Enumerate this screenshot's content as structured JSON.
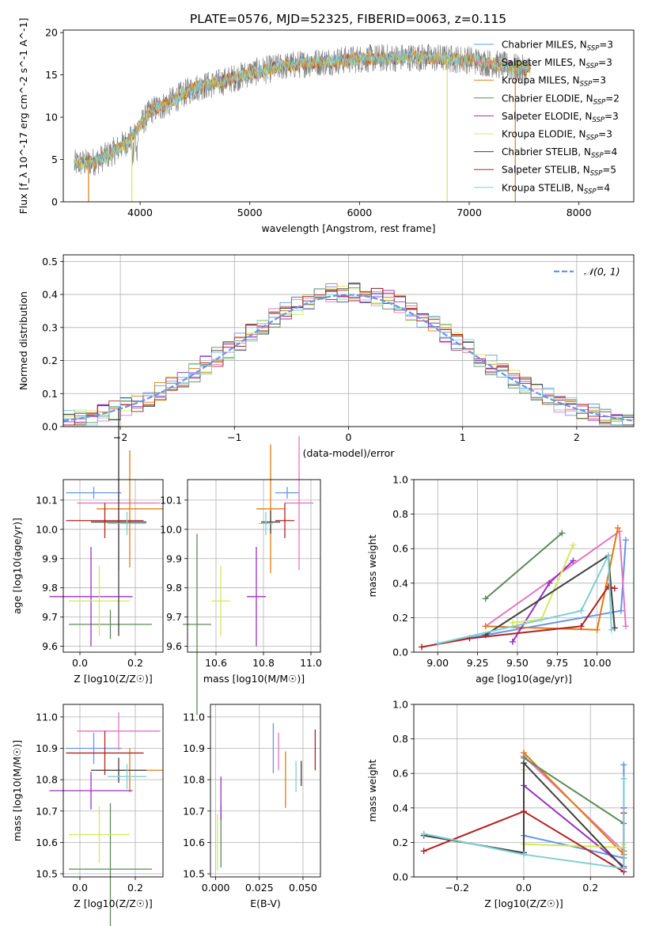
{
  "figure": {
    "suptitle": "PLATE=0576, MJD=52325, FIBERID=0063, z=0.115"
  },
  "colors": {
    "Chabrier MILES": "#6495ed",
    "Salpeter MILES": "#e377c2",
    "Kroupa MILES": "#e07b10",
    "Chabrier ELODIE": "#5b8a5b",
    "Salpeter ELODIE": "#9b30c0",
    "Kroupa ELODIE": "#d4e85a",
    "Chabrier STELIB": "#404040",
    "Salpeter STELIB": "#b22222",
    "Kroupa STELIB": "#7fcfd4",
    "gaussian": "#6495ed"
  },
  "chart_data": [
    {
      "id": "spectrum",
      "type": "line",
      "xlabel": "wavelength [Angstrom, rest frame]",
      "ylabel": "Flux [f_λ 10^-17 erg cm^-2 s^-1 A^-1]",
      "xlim": [
        3300,
        8500
      ],
      "ylim": [
        0,
        20.3
      ],
      "xticks": [
        4000,
        5000,
        6000,
        7000,
        8000
      ],
      "yticks": [
        0,
        5,
        10,
        15,
        20
      ],
      "legend": "upper-right",
      "continuum": {
        "x": [
          3400,
          3500,
          3600,
          3700,
          3800,
          3900,
          4000,
          4100,
          4200,
          4300,
          4400,
          4500,
          4700,
          5000,
          5300,
          5600,
          6000,
          6500,
          7000,
          7500
        ],
        "y": [
          4.5,
          4.6,
          4.8,
          5.5,
          6.3,
          7.3,
          9.0,
          10.8,
          11.3,
          12.0,
          12.8,
          13.5,
          14.0,
          15.2,
          16.0,
          16.5,
          16.9,
          17.1,
          16.8,
          15.7
        ]
      },
      "series": [
        {
          "name": "Chabrier MILES",
          "nssp": "3"
        },
        {
          "name": "Salpeter MILES",
          "nssp": "3"
        },
        {
          "name": "Kroupa MILES",
          "nssp": "3"
        },
        {
          "name": "Chabrier ELODIE",
          "nssp": "2"
        },
        {
          "name": "Salpeter ELODIE",
          "nssp": "3"
        },
        {
          "name": "Kroupa ELODIE",
          "nssp": "3"
        },
        {
          "name": "Chabrier STELIB",
          "nssp": "4"
        },
        {
          "name": "Salpeter STELIB",
          "nssp": "5"
        },
        {
          "name": "Kroupa STELIB",
          "nssp": "4"
        }
      ],
      "drops": [
        {
          "x": 3530,
          "y": 0,
          "series": "Kroupa MILES"
        },
        {
          "x": 3925,
          "y": 0,
          "series": "Kroupa ELODIE"
        },
        {
          "x": 6800,
          "y": 0,
          "series": "Kroupa ELODIE"
        },
        {
          "x": 7420,
          "y": 0,
          "series": "Kroupa MILES"
        }
      ]
    },
    {
      "id": "histogram",
      "type": "line",
      "xlabel": "(data-model)/error",
      "ylabel": "Normed distribution",
      "xlim": [
        -2.5,
        2.5
      ],
      "ylim": [
        0,
        0.52
      ],
      "xticks": [
        -2,
        -1,
        0,
        1,
        2
      ],
      "yticks": [
        0.0,
        0.1,
        0.2,
        0.3,
        0.4,
        0.5
      ],
      "legend": "upper-right",
      "gaussian_label": "𝒩(0, 1)",
      "bin_width": 0.1
    },
    {
      "id": "age_vs_Z",
      "type": "scatter",
      "xlabel": "Z [log10(Z/Z☉)]",
      "ylabel": "age  [log10(age/yr)]",
      "xlim": [
        -0.06,
        0.3
      ],
      "ylim": [
        9.58,
        10.17
      ],
      "xticks": [
        0.0,
        0.2
      ],
      "yticks": [
        9.6,
        9.7,
        9.8,
        9.9,
        10.0,
        10.1
      ],
      "points": [
        {
          "series": "Chabrier MILES",
          "x": 0.05,
          "y": 10.125,
          "xerr": 0.1,
          "yerr": 0.02
        },
        {
          "series": "Salpeter MILES",
          "x": 0.14,
          "y": 10.09,
          "xerr": 0.15,
          "yerr": 0.23
        },
        {
          "series": "Kroupa MILES",
          "x": 0.18,
          "y": 10.07,
          "xerr": 0.12,
          "yerr": 0.2
        },
        {
          "series": "Chabrier ELODIE",
          "x": 0.11,
          "y": 9.675,
          "xerr": 0.15,
          "yerr": 0.05
        },
        {
          "series": "Salpeter ELODIE",
          "x": 0.04,
          "y": 9.77,
          "xerr": 0.15,
          "yerr": 0.17
        },
        {
          "series": "Kroupa ELODIE",
          "x": 0.07,
          "y": 9.755,
          "xerr": 0.11,
          "yerr": 0.12
        },
        {
          "series": "Chabrier STELIB",
          "x": 0.14,
          "y": 10.025,
          "xerr": 0.1,
          "yerr": 0.39
        },
        {
          "series": "Salpeter STELIB",
          "x": 0.09,
          "y": 10.03,
          "xerr": 0.14,
          "yerr": 0.06
        },
        {
          "series": "Kroupa STELIB",
          "x": 0.17,
          "y": 10.02,
          "xerr": 0.07,
          "yerr": 0.04
        }
      ]
    },
    {
      "id": "age_vs_mass",
      "type": "scatter",
      "xlabel": "mass [log10(M/M☉)]",
      "ylabel": "",
      "xlim": [
        10.48,
        11.04
      ],
      "ylim": [
        9.58,
        10.17
      ],
      "xticks": [
        10.6,
        10.8,
        11.0
      ],
      "yticks": [
        9.6,
        9.7,
        9.8,
        9.9,
        10.0,
        10.1
      ],
      "points": [
        {
          "series": "Chabrier MILES",
          "x": 10.9,
          "y": 10.125,
          "xerr": 0.05,
          "yerr": 0.02
        },
        {
          "series": "Salpeter MILES",
          "x": 10.95,
          "y": 10.09,
          "xerr": 0.06,
          "yerr": 0.23
        },
        {
          "series": "Kroupa MILES",
          "x": 10.83,
          "y": 10.07,
          "xerr": 0.06,
          "yerr": 0.22
        },
        {
          "series": "Chabrier ELODIE",
          "x": 10.52,
          "y": 9.675,
          "xerr": 0.06,
          "yerr": 0.31
        },
        {
          "series": "Salpeter ELODIE",
          "x": 10.77,
          "y": 9.77,
          "xerr": 0.04,
          "yerr": 0.17
        },
        {
          "series": "Kroupa ELODIE",
          "x": 10.62,
          "y": 9.755,
          "xerr": 0.04,
          "yerr": 0.12
        },
        {
          "series": "Chabrier STELIB",
          "x": 10.83,
          "y": 10.025,
          "xerr": 0.04,
          "yerr": 0.04
        },
        {
          "series": "Salpeter STELIB",
          "x": 10.89,
          "y": 10.03,
          "xerr": 0.04,
          "yerr": 0.06
        },
        {
          "series": "Kroupa STELIB",
          "x": 10.81,
          "y": 10.02,
          "xerr": 0.03,
          "yerr": 0.04
        }
      ]
    },
    {
      "id": "weight_vs_age",
      "type": "line",
      "xlabel": "age  [log10(age/yr)]",
      "ylabel": "mass weight",
      "xlim": [
        8.85,
        10.23
      ],
      "ylim": [
        0,
        1.0
      ],
      "xticks": [
        9.0,
        9.25,
        9.5,
        9.75,
        10.0
      ],
      "yticks": [
        0.0,
        0.2,
        0.4,
        0.6,
        0.8,
        1.0
      ],
      "series": [
        {
          "name": "Chabrier MILES",
          "x": [
            9.0,
            10.15,
            10.18
          ],
          "y": [
            0.05,
            0.24,
            0.65
          ]
        },
        {
          "name": "Salpeter MILES",
          "x": [
            9.3,
            10.14,
            10.18
          ],
          "y": [
            0.15,
            0.7,
            0.15
          ]
        },
        {
          "name": "Kroupa MILES",
          "x": [
            9.3,
            10.0,
            10.13
          ],
          "y": [
            0.15,
            0.13,
            0.72
          ]
        },
        {
          "name": "Chabrier ELODIE",
          "x": [
            9.3,
            9.78
          ],
          "y": [
            0.31,
            0.69
          ]
        },
        {
          "name": "Salpeter ELODIE",
          "x": [
            9.47,
            9.7,
            9.85
          ],
          "y": [
            0.06,
            0.4,
            0.53
          ]
        },
        {
          "name": "Kroupa ELODIE",
          "x": [
            9.47,
            9.65,
            9.85
          ],
          "y": [
            0.17,
            0.19,
            0.62
          ]
        },
        {
          "name": "Chabrier STELIB",
          "x": [
            9.3,
            10.07,
            10.11
          ],
          "y": [
            0.1,
            0.56,
            0.14
          ]
        },
        {
          "name": "Salpeter STELIB",
          "x": [
            8.9,
            9.2,
            9.9,
            10.07,
            10.11
          ],
          "y": [
            0.03,
            0.08,
            0.15,
            0.38,
            0.37
          ]
        },
        {
          "name": "Kroupa STELIB",
          "x": [
            9.0,
            9.9,
            10.07,
            10.09
          ],
          "y": [
            0.05,
            0.24,
            0.56,
            0.13
          ]
        }
      ]
    },
    {
      "id": "mass_vs_Z",
      "type": "scatter",
      "xlabel": "Z [log10(Z/Z☉)]",
      "ylabel": "mass [log10(M/M☉)]",
      "xlim": [
        -0.06,
        0.3
      ],
      "ylim": [
        10.49,
        11.04
      ],
      "xticks": [
        0.0,
        0.2
      ],
      "yticks": [
        10.5,
        10.6,
        10.7,
        10.8,
        10.9,
        11.0
      ],
      "points": [
        {
          "series": "Chabrier MILES",
          "x": 0.05,
          "y": 10.9,
          "xerr": 0.1,
          "yerr": 0.05
        },
        {
          "series": "Salpeter MILES",
          "x": 0.14,
          "y": 10.955,
          "xerr": 0.15,
          "yerr": 0.06
        },
        {
          "series": "Kroupa MILES",
          "x": 0.18,
          "y": 10.83,
          "xerr": 0.12,
          "yerr": 0.07
        },
        {
          "series": "Chabrier ELODIE",
          "x": 0.11,
          "y": 10.515,
          "xerr": 0.15,
          "yerr": 0.21
        },
        {
          "series": "Salpeter ELODIE",
          "x": 0.04,
          "y": 10.765,
          "xerr": 0.15,
          "yerr": 0.06
        },
        {
          "series": "Kroupa ELODIE",
          "x": 0.07,
          "y": 10.625,
          "xerr": 0.11,
          "yerr": 0.09
        },
        {
          "series": "Chabrier STELIB",
          "x": 0.14,
          "y": 10.83,
          "xerr": 0.1,
          "yerr": 0.04
        },
        {
          "series": "Salpeter STELIB",
          "x": 0.09,
          "y": 10.885,
          "xerr": 0.14,
          "yerr": 0.07
        },
        {
          "series": "Kroupa STELIB",
          "x": 0.17,
          "y": 10.81,
          "xerr": 0.07,
          "yerr": 0.04
        }
      ]
    },
    {
      "id": "mass_vs_EBV",
      "type": "scatter",
      "xlabel": "E(B-V)",
      "ylabel": "",
      "xlim": [
        -0.003,
        0.06
      ],
      "ylim": [
        10.49,
        11.04
      ],
      "xticks": [
        0.0,
        0.025,
        0.05
      ],
      "yticks": [
        10.5,
        10.6,
        10.7,
        10.8,
        10.9,
        11.0
      ],
      "points": [
        {
          "series": "Chabrier MILES",
          "x": 0.033,
          "y": 10.9,
          "yerr": 0.08
        },
        {
          "series": "Salpeter MILES",
          "x": 0.036,
          "y": 10.89,
          "yerr": 0.06
        },
        {
          "series": "Kroupa MILES",
          "x": 0.04,
          "y": 10.8,
          "yerr": 0.09
        },
        {
          "series": "Chabrier ELODIE",
          "x": 0.003,
          "y": 10.62,
          "yerr": 0.1
        },
        {
          "series": "Salpeter ELODIE",
          "x": 0.003,
          "y": 10.74,
          "yerr": 0.07
        },
        {
          "series": "Kroupa ELODIE",
          "x": 0.001,
          "y": 10.6,
          "yerr": 0.09
        },
        {
          "series": "Chabrier STELIB",
          "x": 0.049,
          "y": 10.82,
          "yerr": 0.04
        },
        {
          "series": "Salpeter STELIB",
          "x": 0.057,
          "y": 10.895,
          "yerr": 0.065
        },
        {
          "series": "Kroupa STELIB",
          "x": 0.046,
          "y": 10.81,
          "yerr": 0.05
        }
      ]
    },
    {
      "id": "weight_vs_Z",
      "type": "line",
      "xlabel": "Z [log10(Z/Z☉)]",
      "ylabel": "mass weight",
      "xlim": [
        -0.33,
        0.33
      ],
      "ylim": [
        0,
        1.0
      ],
      "xticks": [
        -0.2,
        0.0,
        0.2
      ],
      "yticks": [
        0.0,
        0.2,
        0.4,
        0.6,
        0.8,
        1.0
      ],
      "series": [
        {
          "name": "Chabrier MILES",
          "x": [
            0.0,
            0.3,
            0.3
          ],
          "y": [
            0.24,
            0.11,
            0.65
          ]
        },
        {
          "name": "Salpeter MILES",
          "x": [
            0.0,
            0.3,
            0.3
          ],
          "y": [
            0.7,
            0.15,
            0.15
          ]
        },
        {
          "name": "Kroupa MILES",
          "x": [
            0.0,
            0.3,
            0.3
          ],
          "y": [
            0.72,
            0.13,
            0.15
          ]
        },
        {
          "name": "Chabrier ELODIE",
          "x": [
            0.0,
            0.3
          ],
          "y": [
            0.69,
            0.31
          ]
        },
        {
          "name": "Salpeter ELODIE",
          "x": [
            0.0,
            0.3,
            0.3
          ],
          "y": [
            0.53,
            0.06,
            0.4
          ]
        },
        {
          "name": "Kroupa ELODIE",
          "x": [
            0.0,
            0.0,
            0.3,
            0.3
          ],
          "y": [
            0.62,
            0.19,
            0.17,
            0.19
          ]
        },
        {
          "name": "Chabrier STELIB",
          "x": [
            -0.3,
            0.0,
            0.0,
            0.3
          ],
          "y": [
            0.24,
            0.14,
            0.66,
            0.05
          ]
        },
        {
          "name": "Salpeter STELIB",
          "x": [
            -0.3,
            0.0,
            0.3,
            0.3
          ],
          "y": [
            0.15,
            0.38,
            0.03,
            0.37
          ]
        },
        {
          "name": "Kroupa STELIB",
          "x": [
            -0.3,
            0.0,
            0.3,
            0.3
          ],
          "y": [
            0.25,
            0.13,
            0.05,
            0.57
          ]
        }
      ]
    }
  ]
}
